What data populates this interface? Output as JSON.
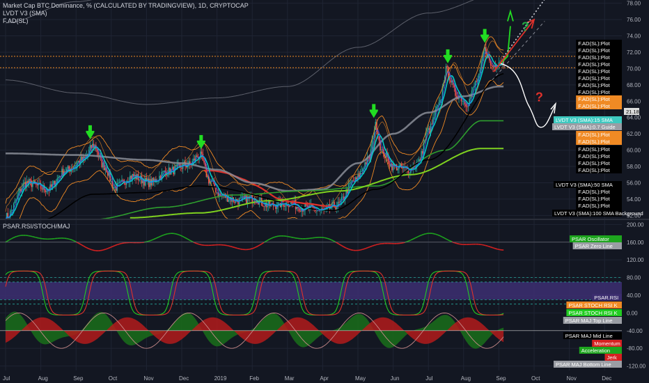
{
  "header": {
    "title": "Market Cap BTC Dominance, % (CALCULATED BY TRADINGVIEW), 1D, CRYPTOCAP",
    "line2": "LVDT V3 (SMA)",
    "line3": "F.AD(SL)",
    "pane2_title": "PSAR.RSI/STOCH/MAJ"
  },
  "colors": {
    "background": "#131722",
    "grid": "#1f2433",
    "sma50": "#2e9e2e",
    "sma100": "#7fd21f",
    "sma200": "#8a8d96",
    "bands": "#f08a24",
    "ema_red": "#e0312b",
    "rsi_teal": "#00c7c7",
    "hline_orange": "#f08a24",
    "arrow_green": "#22dd22",
    "arrow_red": "#e0312b",
    "oscillator_green": "#1ea51e",
    "oscillator_red": "#d62121",
    "rsi_band": "#3b2d6e"
  },
  "chart_data": [
    {
      "type": "line",
      "title": "Market Cap BTC Dominance, % (CALCULATED BY TRADINGVIEW), 1D, CRYPTOCAP",
      "x_ticks": [
        "Jul",
        "Aug",
        "Sep",
        "Oct",
        "Nov",
        "Dec",
        "2019",
        "Feb",
        "Mar",
        "Apr",
        "May",
        "Jun",
        "Jul",
        "Aug",
        "Sep",
        "Oct",
        "Nov",
        "Dec"
      ],
      "y_ticks": [
        "52.00",
        "54.00",
        "56.00",
        "58.00",
        "60.00",
        "62.00",
        "64.00",
        "66.00",
        "68.00",
        "70.00",
        "72.00",
        "74.00",
        "76.00",
        "78.00"
      ],
      "ylim": [
        51.6,
        78.4
      ],
      "current_value": "71.18",
      "horizontal_levels": [
        71.5,
        70.1
      ],
      "series": [
        {
          "name": "BTC Dominance",
          "x": [
            "2018-07",
            "2018-08",
            "2018-09",
            "2018-10",
            "2018-11",
            "2018-12",
            "2019-01",
            "2019-02",
            "2019-03",
            "2019-04",
            "2019-05",
            "2019-06",
            "2019-07",
            "2019-08"
          ],
          "values": [
            54.3,
            57.8,
            59.2,
            55.8,
            56.4,
            58.0,
            53.6,
            53.3,
            52.9,
            52.6,
            59.8,
            59.0,
            66.0,
            70.8
          ]
        },
        {
          "name": "LVDT V3 (SMA):50 SMA",
          "x": [
            "2018-09",
            "2018-11",
            "2019-01",
            "2019-03",
            "2019-05",
            "2019-07",
            "2019-08"
          ],
          "values": [
            51.5,
            53.0,
            54.5,
            55.0,
            55.6,
            60.0,
            63.6
          ]
        },
        {
          "name": "LVDT V3 (SMA):100 SMA Background",
          "x": [
            "2018-10",
            "2018-12",
            "2019-02",
            "2019-04",
            "2019-06",
            "2019-08"
          ],
          "values": [
            51.7,
            52.3,
            53.8,
            55.0,
            57.0,
            60.2
          ]
        }
      ]
    },
    {
      "type": "line",
      "title": "PSAR.RSI/STOCH/MAJ",
      "y_ticks": [
        "200.00",
        "160.00",
        "120.00",
        "80.00",
        "40.00",
        "0.00",
        "-40.00",
        "-80.00",
        "-120.00"
      ],
      "ylim": [
        -130,
        210
      ]
    }
  ],
  "legend_right": [
    {
      "label": "F.AD(SL):Plot",
      "bg": "#000000",
      "fg": "#ffffff"
    },
    {
      "label": "F.AD(SL):Plot",
      "bg": "#000000",
      "fg": "#ffffff"
    },
    {
      "label": "F.AD(SL):Plot",
      "bg": "#000000",
      "fg": "#ffffff"
    },
    {
      "label": "F.AD(SL):Plot",
      "bg": "#000000",
      "fg": "#ffffff"
    },
    {
      "label": "F.AD(SL):Plot",
      "bg": "#000000",
      "fg": "#ffffff"
    },
    {
      "label": "F.AD(SL):Plot",
      "bg": "#000000",
      "fg": "#ffffff"
    },
    {
      "label": "F.AD(SL):Plot",
      "bg": "#000000",
      "fg": "#ffffff"
    },
    {
      "label": "F.AD(SL):Plot",
      "bg": "#000000",
      "fg": "#ffffff"
    },
    {
      "label": "F.AD(SL):Plot",
      "bg": "#f08a24",
      "fg": "#ffffff"
    },
    {
      "label": "F.AD(SL):Plot",
      "bg": "#f08a24",
      "fg": "#ffffff"
    },
    {
      "label": "21.18",
      "bg": "#dddddd",
      "fg": "#000000"
    },
    {
      "label": "LVDT V3 (SMA):15 SMA",
      "bg": "#3ec9c0",
      "fg": "#ffffff"
    },
    {
      "label": "LVDT V3 (SMA):0.7 Guide",
      "bg": "#9a9da4",
      "fg": "#ffffff"
    },
    {
      "label": "F.AD(SL):Plot",
      "bg": "#f08a24",
      "fg": "#ffffff"
    },
    {
      "label": "F.AD(SL):Plot",
      "bg": "#f08a24",
      "fg": "#ffffff"
    },
    {
      "label": "F.AD(SL):Plot",
      "bg": "#000000",
      "fg": "#ffffff"
    },
    {
      "label": "F.AD(SL):Plot",
      "bg": "#000000",
      "fg": "#ffffff"
    },
    {
      "label": "F.AD(SL):Plot",
      "bg": "#000000",
      "fg": "#ffffff"
    },
    {
      "label": "F.AD(SL):Plot",
      "bg": "#000000",
      "fg": "#ffffff"
    },
    {
      "label": "LVDT V3 (SMA):50 SMA",
      "bg": "#000000",
      "fg": "#ffffff"
    },
    {
      "label": "F.AD(SL):Plot",
      "bg": "#000000",
      "fg": "#ffffff"
    },
    {
      "label": "F.AD(SL):Plot",
      "bg": "#000000",
      "fg": "#ffffff"
    },
    {
      "label": "F.AD(SL):Plot",
      "bg": "#000000",
      "fg": "#ffffff"
    },
    {
      "label": "F.AD(SL):Plot",
      "bg": "#000000",
      "fg": "#ffffff"
    },
    {
      "label": "LVDT V3 (SMA):100 SMA Background",
      "bg": "#000000",
      "fg": "#ffffff"
    }
  ],
  "legend_lower": [
    {
      "label": "PSAR Oscillator",
      "bg": "#1ea51e",
      "fg": "#ffffff"
    },
    {
      "label": "PSAR Zero Line",
      "bg": "#9a9da4",
      "fg": "#ffffff"
    },
    {
      "label": "PSAR.RSI",
      "bg": "#3b2d6e",
      "fg": "#ffffff"
    },
    {
      "label": "PSAR STOCH RSI K",
      "bg": "#f08a24",
      "fg": "#ffffff"
    },
    {
      "label": "PSAR STOCH RSI K",
      "bg": "#22cc22",
      "fg": "#ffffff"
    },
    {
      "label": "PSAR MAJ Top Line",
      "bg": "#9a9da4",
      "fg": "#ffffff"
    },
    {
      "label": "PSAR MAJ Mid Line",
      "bg": "#000000",
      "fg": "#ffffff"
    },
    {
      "label": "Momentum",
      "bg": "#d62121",
      "fg": "#ffffff"
    },
    {
      "label": "Acceleration",
      "bg": "#1ea51e",
      "fg": "#ffffff"
    },
    {
      "label": "Jerk",
      "bg": "#d62121",
      "fg": "#ffffff"
    },
    {
      "label": "PSAR MAJ Bottom Line",
      "bg": "#9a9da4",
      "fg": "#ffffff"
    }
  ],
  "annotations": {
    "question_marks": [
      "?",
      "?"
    ]
  }
}
